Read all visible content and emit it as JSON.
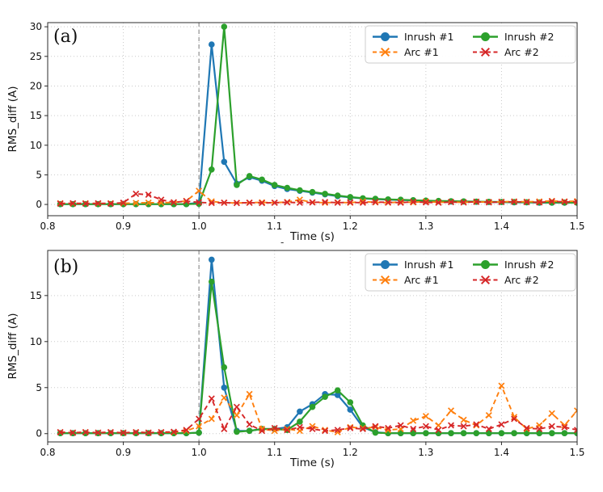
{
  "figure": {
    "stray_mark": "-",
    "accent_colors": {
      "inrush1": "#1f77b4",
      "inrush2": "#2ca02c",
      "arc1": "#ff7f0e",
      "arc2": "#d62728",
      "event_line": "#999999",
      "grid": "#c9c9c9"
    }
  },
  "chart_data": [
    {
      "type": "line",
      "panel": "a",
      "panel_label": "(a)",
      "xlabel": "Time (s)",
      "ylabel": "RMS_diff (A)",
      "xlim": [
        0.8,
        1.5
      ],
      "ylim": [
        -1.9,
        30.7
      ],
      "xticks": [
        "0.8",
        "0.9",
        "1.0",
        "1.1",
        "1.2",
        "1.3",
        "1.4",
        "1.5"
      ],
      "yticks": [
        0,
        5,
        10,
        15,
        20,
        25,
        30
      ],
      "grid": true,
      "grid_style": "dotted",
      "vline_x": 1.0,
      "vline_style": "dashed",
      "legend_position": "upper right",
      "legend_columns": 2,
      "x": [
        0.8167,
        0.8333,
        0.85,
        0.8667,
        0.8833,
        0.9,
        0.9167,
        0.9333,
        0.95,
        0.9667,
        0.9833,
        1.0,
        1.0167,
        1.0333,
        1.05,
        1.0667,
        1.0833,
        1.1,
        1.1167,
        1.1333,
        1.15,
        1.1667,
        1.1833,
        1.2,
        1.2167,
        1.2333,
        1.25,
        1.2667,
        1.2833,
        1.3,
        1.3167,
        1.3333,
        1.35,
        1.3667,
        1.3833,
        1.4,
        1.4167,
        1.4333,
        1.45,
        1.4667,
        1.4833,
        1.5
      ],
      "series": [
        {
          "name": "Inrush #1",
          "color": "#1f77b4",
          "line": "solid",
          "marker": "circle",
          "values": [
            0.05,
            0.05,
            0.05,
            0.05,
            0.05,
            0.05,
            0.05,
            0.05,
            0.05,
            0.05,
            0.05,
            0.3,
            27.0,
            7.2,
            3.5,
            4.6,
            4.0,
            3.1,
            2.6,
            2.3,
            2.0,
            1.7,
            1.4,
            1.2,
            1.0,
            0.9,
            0.8,
            0.75,
            0.7,
            0.6,
            0.55,
            0.5,
            0.5,
            0.45,
            0.4,
            0.4,
            0.35,
            0.35,
            0.3,
            0.3,
            0.3,
            0.3
          ]
        },
        {
          "name": "Inrush #2",
          "color": "#2ca02c",
          "line": "solid",
          "marker": "circle",
          "values": [
            0.05,
            0.05,
            0.05,
            0.05,
            0.05,
            0.05,
            0.05,
            0.05,
            0.05,
            0.05,
            0.05,
            0.1,
            5.9,
            30.0,
            3.3,
            4.8,
            4.2,
            3.3,
            2.8,
            2.4,
            2.1,
            1.8,
            1.5,
            1.25,
            1.05,
            0.95,
            0.85,
            0.8,
            0.72,
            0.65,
            0.6,
            0.55,
            0.52,
            0.48,
            0.45,
            0.42,
            0.4,
            0.38,
            0.35,
            0.33,
            0.32,
            0.3
          ]
        },
        {
          "name": "Arc #1",
          "color": "#ff7f0e",
          "line": "dashed",
          "marker": "x",
          "values": [
            0.2,
            0.15,
            0.2,
            0.15,
            0.2,
            0.2,
            0.25,
            0.3,
            0.3,
            0.35,
            0.6,
            2.3,
            0.5,
            0.3,
            0.25,
            0.3,
            0.35,
            0.3,
            0.4,
            0.8,
            0.35,
            0.3,
            0.35,
            0.3,
            0.5,
            0.35,
            0.3,
            0.4,
            0.35,
            0.5,
            0.35,
            0.4,
            0.35,
            0.45,
            0.4,
            0.45,
            0.5,
            0.45,
            0.5,
            0.6,
            0.5,
            0.55
          ]
        },
        {
          "name": "Arc #2",
          "color": "#d62728",
          "line": "dashed",
          "marker": "x",
          "values": [
            0.15,
            0.2,
            0.15,
            0.2,
            0.15,
            0.3,
            1.8,
            1.65,
            0.8,
            0.35,
            0.55,
            0.35,
            0.25,
            0.3,
            0.25,
            0.3,
            0.25,
            0.3,
            0.35,
            0.3,
            0.35,
            0.4,
            0.3,
            0.35,
            0.3,
            0.4,
            0.35,
            0.3,
            0.45,
            0.35,
            0.3,
            0.4,
            0.35,
            0.45,
            0.35,
            0.4,
            0.45,
            0.4,
            0.35,
            0.5,
            0.45,
            0.4
          ]
        }
      ]
    },
    {
      "type": "line",
      "panel": "b",
      "panel_label": "(b)",
      "xlabel": "Time (s)",
      "ylabel": "RMS_diff (A)",
      "xlim": [
        0.8,
        1.5
      ],
      "ylim": [
        -0.9,
        19.9
      ],
      "xticks": [
        "0.8",
        "0.9",
        "1.0",
        "1.1",
        "1.2",
        "1.3",
        "1.4",
        "1.5"
      ],
      "yticks": [
        0,
        5,
        10,
        15
      ],
      "grid": true,
      "grid_style": "dotted",
      "vline_x": 1.0,
      "vline_style": "dashed",
      "legend_position": "upper right",
      "legend_columns": 2,
      "x": [
        0.8167,
        0.8333,
        0.85,
        0.8667,
        0.8833,
        0.9,
        0.9167,
        0.9333,
        0.95,
        0.9667,
        0.9833,
        1.0,
        1.0167,
        1.0333,
        1.05,
        1.0667,
        1.0833,
        1.1,
        1.1167,
        1.1333,
        1.15,
        1.1667,
        1.1833,
        1.2,
        1.2167,
        1.2333,
        1.25,
        1.2667,
        1.2833,
        1.3,
        1.3167,
        1.3333,
        1.35,
        1.3667,
        1.3833,
        1.4,
        1.4167,
        1.4333,
        1.45,
        1.4667,
        1.4833,
        1.5
      ],
      "series": [
        {
          "name": "Inrush #1",
          "color": "#1f77b4",
          "line": "solid",
          "marker": "circle",
          "values": [
            0.05,
            0.05,
            0.05,
            0.05,
            0.05,
            0.05,
            0.05,
            0.05,
            0.05,
            0.05,
            0.05,
            0.1,
            18.9,
            5.0,
            0.3,
            0.3,
            0.5,
            0.5,
            0.7,
            2.4,
            3.2,
            4.3,
            4.2,
            2.6,
            0.7,
            0.15,
            0.05,
            0.05,
            0.05,
            0.05,
            0.05,
            0.05,
            0.05,
            0.05,
            0.05,
            0.05,
            0.05,
            0.05,
            0.05,
            0.05,
            0.05,
            0.05
          ]
        },
        {
          "name": "Inrush #2",
          "color": "#2ca02c",
          "line": "solid",
          "marker": "circle",
          "values": [
            0.05,
            0.05,
            0.05,
            0.05,
            0.05,
            0.05,
            0.05,
            0.05,
            0.05,
            0.05,
            0.05,
            0.1,
            16.5,
            7.2,
            0.2,
            0.3,
            0.5,
            0.5,
            0.4,
            1.3,
            2.9,
            4.0,
            4.7,
            3.4,
            0.9,
            0.1,
            0.05,
            0.05,
            0.05,
            0.05,
            0.05,
            0.05,
            0.05,
            0.05,
            0.05,
            0.05,
            0.05,
            0.05,
            0.05,
            0.05,
            0.05,
            0.05
          ]
        },
        {
          "name": "Arc #1",
          "color": "#ff7f0e",
          "line": "dashed",
          "marker": "x",
          "values": [
            0.15,
            0.1,
            0.15,
            0.1,
            0.15,
            0.1,
            0.15,
            0.1,
            0.15,
            0.15,
            0.3,
            0.8,
            1.6,
            3.9,
            2.0,
            4.3,
            0.5,
            0.3,
            0.5,
            0.3,
            0.8,
            0.4,
            0.15,
            0.7,
            0.6,
            0.7,
            0.4,
            0.5,
            1.4,
            1.9,
            0.9,
            2.5,
            1.5,
            0.9,
            2.0,
            5.2,
            1.8,
            0.5,
            0.9,
            2.2,
            0.9,
            2.5
          ]
        },
        {
          "name": "Arc #2",
          "color": "#d62728",
          "line": "dashed",
          "marker": "x",
          "values": [
            0.15,
            0.1,
            0.15,
            0.1,
            0.15,
            0.1,
            0.15,
            0.1,
            0.15,
            0.2,
            0.4,
            1.6,
            3.8,
            0.5,
            2.9,
            1.0,
            0.3,
            0.6,
            0.4,
            0.7,
            0.5,
            0.3,
            0.4,
            0.6,
            0.5,
            0.8,
            0.6,
            0.9,
            0.5,
            0.8,
            0.4,
            0.9,
            0.8,
            1.0,
            0.5,
            1.0,
            1.6,
            0.6,
            0.5,
            0.8,
            0.7,
            0.4
          ]
        }
      ]
    }
  ]
}
